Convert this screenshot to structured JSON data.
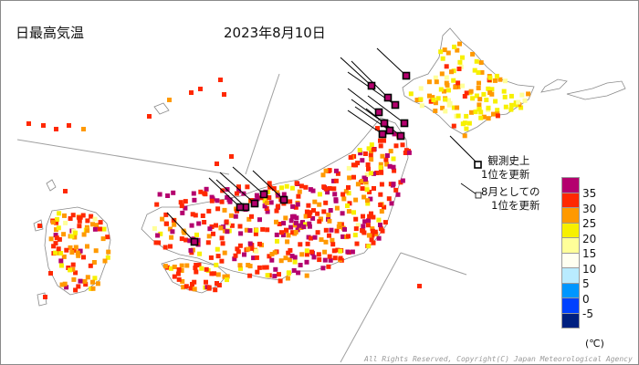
{
  "title": "日最高気温",
  "date": "2023年8月10日",
  "annotations": {
    "record_all_time": [
      "観測史上",
      "1位を更新"
    ],
    "record_august": [
      "8月としての",
      "1位を更新"
    ]
  },
  "legend": {
    "unit": "(℃)",
    "levels": [
      "35",
      "30",
      "25",
      "20",
      "15",
      "10",
      "5",
      "0",
      "-5"
    ],
    "colors": [
      "#b4006e",
      "#ff2800",
      "#ff9900",
      "#f7f000",
      "#ffff99",
      "#fffff0",
      "#b9ebff",
      "#0096ff",
      "#0041ff",
      "#002080"
    ]
  },
  "copyright": "All Rights Reserved, Copyright(C) Japan Meteorological Agency",
  "colors": {
    "land_outline": "#888888",
    "divider_line": "#999999",
    "marker_border": "#000000"
  }
}
